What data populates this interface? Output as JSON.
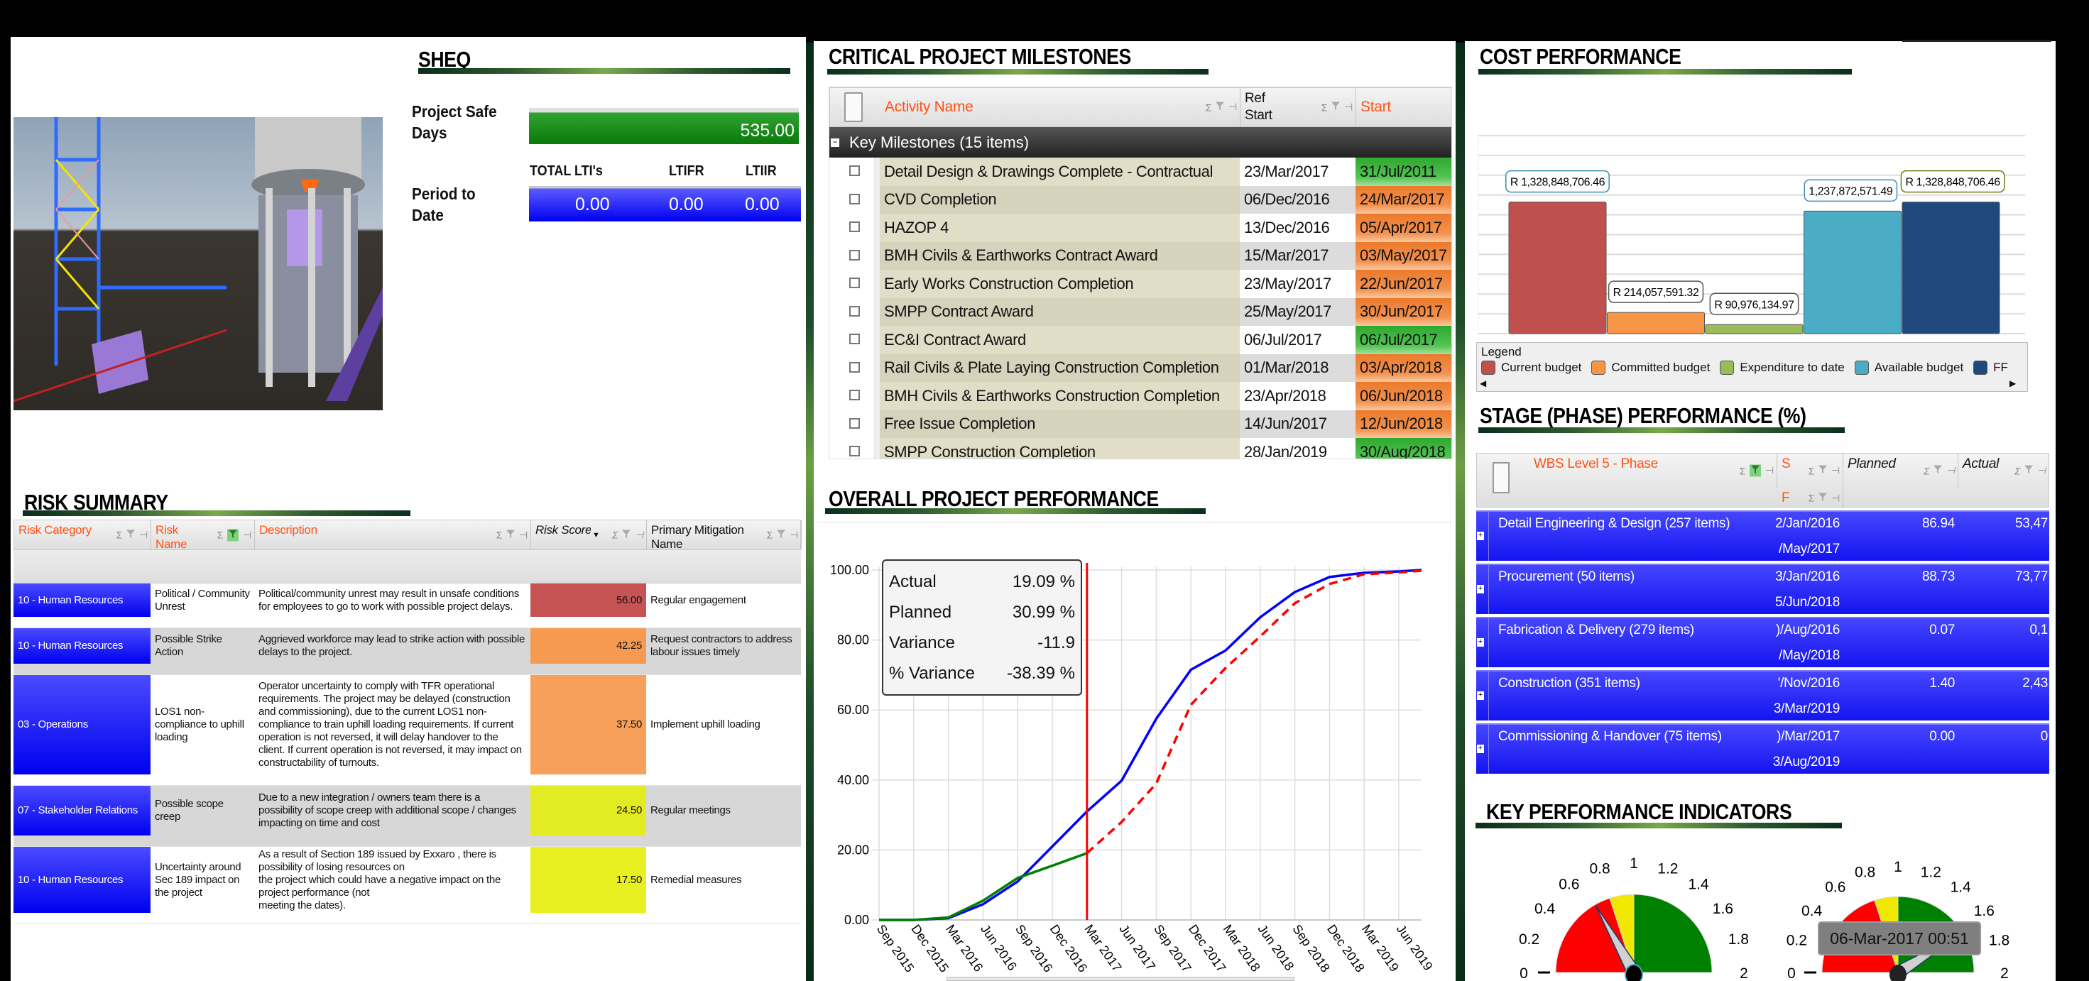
{
  "sheq": {
    "title": "SHEQ",
    "safe_days_label": "Project Safe Days",
    "safe_days_value": "535.00",
    "period_label": "Period to Date",
    "columns": [
      "TOTAL LTI's",
      "LTIFR",
      "LTIIR"
    ],
    "values": [
      "0.00",
      "0.00",
      "0.00"
    ],
    "safe_color": "#1a8f1a",
    "period_color": "#0a0aff"
  },
  "risk": {
    "title": "RISK SUMMARY",
    "columns": [
      "Risk Category",
      "Risk Name",
      "Description",
      "Risk Score",
      "Primary Mitigation Name"
    ],
    "rows": [
      {
        "category": "10 - Human Resources",
        "name": "Political / Community Unrest",
        "description": "Political/community unrest may result in unsafe conditions for employees to go to work with possible project delays.",
        "score": "56.00",
        "mitigation": "Regular engagement",
        "color": "#c65454"
      },
      {
        "category": "10 - Human Resources",
        "name": "Possible Strike Action",
        "description": "Aggrieved workforce may lead to strike action with possible delays to the project.",
        "score": "42.25",
        "mitigation": "Request contractors to address labour issues timely",
        "color": "#f59a50"
      },
      {
        "category": "03 - Operations",
        "name": "LOS1 non-compliance to uphill loading",
        "description": "Operator uncertainty to comply with TFR operational requirements. The project may be delayed (construction and commissioning), due to the current LOS1 non-compliance to train uphill loading requirements. If current operation is  not reversed, it will delay handover to the client. If current operation is not reversed, it may impact on constructability of turnouts.",
        "score": "37.50",
        "mitigation": "Implement uphill loading",
        "color": "#f6a05c"
      },
      {
        "category": "07 - Stakeholder Relations",
        "name": "Possible scope creep",
        "description": "Due to a new integration / owners team there is a possibility of scope creep with additional scope / changes impacting on  time and cost",
        "score": "24.50",
        "mitigation": "Regular meetings",
        "color": "#e3ec22"
      },
      {
        "category": "10 - Human Resources",
        "name": "Uncertainty around Sec 189 impact on the project",
        "description": "As a result of Section 189 issued by Exxaro , there is\npossibility of losing resources on\nthe project which could have a negative impact on the\nproject performance (not\nmeeting the dates).",
        "score": "17.50",
        "mitigation": "Remedial measures",
        "color": "#e8f022"
      }
    ]
  },
  "milestones": {
    "title": "CRITICAL PROJECT MILESTONES",
    "columns": [
      "Activity Name",
      "Ref Start",
      "Start"
    ],
    "group": "Key Milestones (15 items)",
    "rows": [
      {
        "name": "Detail Design & Drawings Complete - Contractual",
        "ref": "23/Mar/2017",
        "start": "31/Jul/2011",
        "status": "green"
      },
      {
        "name": "CVD Completion",
        "ref": "06/Dec/2016",
        "start": "24/Mar/2017",
        "status": "orange"
      },
      {
        "name": "HAZOP 4",
        "ref": "13/Dec/2016",
        "start": "05/Apr/2017",
        "status": "orange"
      },
      {
        "name": "BMH Civils & Earthworks Contract Award",
        "ref": "15/Mar/2017",
        "start": "03/May/2017",
        "status": "orange"
      },
      {
        "name": "Early Works Construction Completion",
        "ref": "23/May/2017",
        "start": "22/Jun/2017",
        "status": "orange"
      },
      {
        "name": "SMPP Contract Award",
        "ref": "25/May/2017",
        "start": "30/Jun/2017",
        "status": "orange"
      },
      {
        "name": "EC&I Contract Award",
        "ref": "06/Jul/2017",
        "start": "06/Jul/2017",
        "status": "green"
      },
      {
        "name": "Rail Civils & Plate Laying Construction Completion",
        "ref": "01/Mar/2018",
        "start": "03/Apr/2018",
        "status": "orange"
      },
      {
        "name": "BMH Civils & Earthworks Construction Completion",
        "ref": "23/Apr/2018",
        "start": "06/Jun/2018",
        "status": "orange"
      },
      {
        "name": "Free Issue Completion",
        "ref": "14/Jun/2017",
        "start": "12/Jun/2018",
        "status": "orange"
      },
      {
        "name": "SMPP Construction Completion",
        "ref": "28/Jan/2019",
        "start": "30/Aug/2018",
        "status": "green"
      }
    ]
  },
  "performance": {
    "title": "OVERALL PROJECT PERFORMANCE",
    "summary": [
      {
        "label": "Actual",
        "value": "19.09 %"
      },
      {
        "label": "Planned",
        "value": "30.99 %"
      },
      {
        "label": "Variance",
        "value": "-11.9"
      },
      {
        "label": "% Variance",
        "value": "-38.39 %"
      }
    ]
  },
  "cost": {
    "title": "COST PERFORMANCE",
    "legend_title": "Legend"
  },
  "stage": {
    "title": "STAGE (PHASE) PERFORMANCE (%)",
    "columns": {
      "phase": "WBS Level 5 - Phase",
      "start": "S",
      "finish": "F",
      "planned": "Planned",
      "actual": "Actual"
    },
    "rows": [
      {
        "phase": "Detail Engineering & Design (257 items)",
        "start": "2/Jan/2016",
        "finish": "/May/2017",
        "planned": "86.94",
        "actual": "53,47"
      },
      {
        "phase": "Procurement (50 items)",
        "start": "3/Jan/2016",
        "finish": "5/Jun/2018",
        "planned": "88.73",
        "actual": "73,77"
      },
      {
        "phase": "Fabrication & Delivery (279 items)",
        "start": ")/Aug/2016",
        "finish": "/May/2018",
        "planned": "0.07",
        "actual": "0,1"
      },
      {
        "phase": "Construction (351 items)",
        "start": "'/Nov/2016",
        "finish": "3/Mar/2019",
        "planned": "1.40",
        "actual": "2,43"
      },
      {
        "phase": "Commissioning & Handover (75 items)",
        "start": ")/Mar/2017",
        "finish": "3/Aug/2019",
        "planned": "0.00",
        "actual": "0"
      }
    ]
  },
  "kpi": {
    "title": "KEY PERFORMANCE INDICATORS",
    "tooltip": "06-Mar-2017 00:51",
    "gauges": [
      {
        "value": 0.67,
        "ticks": [
          "0",
          "0.2",
          "0.4",
          "0.6",
          "0.8",
          "1",
          "1.2",
          "1.4",
          "1.6",
          "1.8",
          "2"
        ]
      },
      {
        "value": 1.65,
        "ticks": [
          "0",
          "0.2",
          "0.4",
          "0.6",
          "0.8",
          "1",
          "1.2",
          "1.4",
          "1.6",
          "1.8",
          "2"
        ]
      }
    ],
    "bands": [
      {
        "from": 0,
        "to": 0.8,
        "color": "#ff0000"
      },
      {
        "from": 0.8,
        "to": 1.0,
        "color": "#f0e800"
      },
      {
        "from": 1.0,
        "to": 2.0,
        "color": "#008000"
      }
    ]
  },
  "chart_data": [
    {
      "type": "line",
      "title": "",
      "xlabel": "",
      "ylabel": "",
      "ylim": [
        0,
        100
      ],
      "grid": true,
      "categories": [
        "Sep 2015",
        "Dec 2015",
        "Mar 2016",
        "Jun 2016",
        "Sep 2016",
        "Dec 2016",
        "Mar 2017",
        "Jun 2017",
        "Sep 2017",
        "Dec 2017",
        "Mar 2018",
        "Jun 2018",
        "Sep 2018",
        "Dec 2018",
        "Mar 2019",
        "Jun 2019"
      ],
      "yticks": [
        "0.00",
        "20.00",
        "40.00",
        "60.00",
        "80.00",
        "100.00"
      ],
      "status_date": "Mar 2017",
      "series": [
        {
          "role": "planned",
          "color": "#0000ff",
          "style": "solid",
          "values": [
            0,
            0,
            0.5,
            4.5,
            11,
            21,
            31,
            39.8,
            57.5,
            71.5,
            77,
            86.5,
            93.7,
            98,
            99.2,
            99.6
          ]
        },
        {
          "role": "actual",
          "color": "#008000",
          "style": "solid",
          "values": [
            0,
            0,
            0.7,
            5.5,
            12,
            15.5,
            19.09,
            null,
            null,
            null,
            null,
            null,
            null,
            null,
            null,
            null
          ]
        },
        {
          "role": "forecast",
          "color": "#ff0000",
          "style": "dashed",
          "values": [
            null,
            null,
            null,
            null,
            null,
            null,
            19.09,
            28,
            39,
            61.5,
            72,
            81,
            90.5,
            96,
            98.8,
            99.3
          ]
        }
      ]
    },
    {
      "type": "bar",
      "title": "",
      "ylim": [
        0,
        2000000000
      ],
      "grid": true,
      "legend": "bottom",
      "categories": [
        "Current budget",
        "Committed budget",
        "Expenditure to date",
        "Available budget",
        "FF"
      ],
      "values": [
        1328848706.46,
        214057591.32,
        90976134.97,
        1237872571.49,
        1328848706.46
      ],
      "labels": [
        "R 1,328,848,706.46",
        "R 214,057,591.32",
        "R 90,976,134.97",
        "1,237,872,571.49",
        "R 1,328,848,706.46"
      ],
      "colors": [
        "#c0504d",
        "#f79646",
        "#9bbb59",
        "#4bacc6",
        "#1f497d"
      ]
    }
  ]
}
